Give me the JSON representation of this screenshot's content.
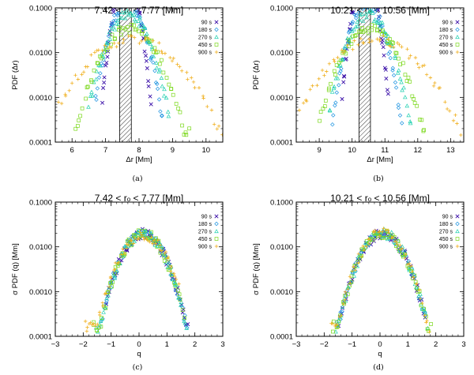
{
  "series_styles": [
    {
      "name": "90 s",
      "color": "#3a0fa8",
      "marker": "x"
    },
    {
      "name": "180 s",
      "color": "#1c93e0",
      "marker": "diamond"
    },
    {
      "name": "270 s",
      "color": "#20d0b0",
      "marker": "triangle"
    },
    {
      "name": "450 s",
      "color": "#7ad81a",
      "marker": "square"
    },
    {
      "name": "900 s",
      "color": "#f0b020",
      "marker": "plus"
    }
  ],
  "chart_data": [
    {
      "type": "scatter",
      "panel": "a",
      "caption": "(a)",
      "title_pre": "7.42 < r",
      "title_sub": "o",
      "title_post": " < 7.77 [Mm]",
      "xlabel": "Δr [Mm]",
      "ylabel": "PDF (Δr)",
      "xlim": [
        5.5,
        10.5
      ],
      "xticks": [
        6,
        7,
        8,
        9,
        10
      ],
      "ylim": [
        0.0001,
        0.1
      ],
      "yscale": "log",
      "yticks": [
        0.0001,
        0.001,
        0.01,
        0.1
      ],
      "ytick_labels": [
        "0.0001",
        "0.0010",
        "0.0100",
        "0.1000"
      ],
      "hatch": [
        7.42,
        7.77
      ],
      "series": [
        {
          "name": "90 s",
          "kind": "gauss",
          "mu": 7.62,
          "sigma": 0.2,
          "peak": 0.5,
          "xmin": 6.9,
          "xmax": 8.35
        },
        {
          "name": "180 s",
          "kind": "gauss",
          "mu": 7.65,
          "sigma": 0.3,
          "peak": 0.13,
          "xmin": 6.7,
          "xmax": 8.7
        },
        {
          "name": "270 s",
          "kind": "gauss",
          "mu": 7.68,
          "sigma": 0.38,
          "peak": 0.07,
          "xmin": 6.5,
          "xmax": 8.9
        },
        {
          "name": "450 s",
          "kind": "gauss",
          "mu": 7.72,
          "sigma": 0.5,
          "peak": 0.035,
          "xmin": 6.1,
          "xmax": 9.5
        },
        {
          "name": "900 s",
          "kind": "gauss",
          "mu": 7.8,
          "sigma": 0.85,
          "peak": 0.02,
          "xmin": 5.6,
          "xmax": 10.45
        }
      ]
    },
    {
      "type": "scatter",
      "panel": "b",
      "caption": "(b)",
      "title_pre": "10.21 < r",
      "title_sub": "o",
      "title_post": " < 10.56 [Mm]",
      "xlabel": "Δr [Mm]",
      "ylabel": "PDF (Δr)",
      "xlim": [
        8.3,
        13.4
      ],
      "xticks": [
        9,
        10,
        11,
        12,
        13
      ],
      "ylim": [
        0.0001,
        0.1
      ],
      "yscale": "log",
      "yticks": [
        0.0001,
        0.001,
        0.01,
        0.1
      ],
      "ytick_labels": [
        "0.0001",
        "0.0010",
        "0.0100",
        "0.1000"
      ],
      "hatch": [
        10.21,
        10.56
      ],
      "series": [
        {
          "name": "90 s",
          "kind": "gauss",
          "mu": 10.4,
          "sigma": 0.2,
          "peak": 0.5,
          "xmin": 9.7,
          "xmax": 11.1
        },
        {
          "name": "180 s",
          "kind": "gauss",
          "mu": 10.45,
          "sigma": 0.3,
          "peak": 0.13,
          "xmin": 9.4,
          "xmax": 11.5
        },
        {
          "name": "270 s",
          "kind": "gauss",
          "mu": 10.5,
          "sigma": 0.38,
          "peak": 0.07,
          "xmin": 9.3,
          "xmax": 11.8
        },
        {
          "name": "450 s",
          "kind": "gauss",
          "mu": 10.55,
          "sigma": 0.5,
          "peak": 0.035,
          "xmin": 9.0,
          "xmax": 12.2
        },
        {
          "name": "900 s",
          "kind": "gauss",
          "mu": 10.7,
          "sigma": 0.85,
          "peak": 0.02,
          "xmin": 8.4,
          "xmax": 13.3
        }
      ]
    },
    {
      "type": "scatter",
      "panel": "c",
      "caption": "(c)",
      "title_pre": "7.42 < r",
      "title_sub": "o",
      "title_post": " < 7.77 [Mm]",
      "xlabel": "q",
      "ylabel": "σ PDF (q) [Mm]",
      "xlim": [
        -3,
        3
      ],
      "xticks": [
        -3,
        -2,
        -1,
        0,
        1,
        2,
        3
      ],
      "ylim": [
        0.0001,
        0.1
      ],
      "yscale": "log",
      "yticks": [
        0.0001,
        0.001,
        0.01,
        0.1
      ],
      "ytick_labels": [
        "0.0001",
        "0.0010",
        "0.0100",
        "0.1000"
      ],
      "series": [
        {
          "name": "90 s",
          "kind": "gauss",
          "mu": 0.15,
          "sigma": 0.5,
          "peak": 0.02,
          "xmin": -1.2,
          "xmax": 1.75
        },
        {
          "name": "180 s",
          "kind": "gauss",
          "mu": 0.15,
          "sigma": 0.5,
          "peak": 0.02,
          "xmin": -1.4,
          "xmax": 1.75
        },
        {
          "name": "270 s",
          "kind": "gauss",
          "mu": 0.15,
          "sigma": 0.5,
          "peak": 0.02,
          "xmin": -1.55,
          "xmax": 1.7
        },
        {
          "name": "450 s",
          "kind": "gauss",
          "mu": 0.15,
          "sigma": 0.5,
          "peak": 0.02,
          "xmin": -1.65,
          "xmax": 1.6
        },
        {
          "name": "900 s",
          "kind": "gauss",
          "mu": 0.15,
          "sigma": 0.55,
          "peak": 0.018,
          "xmin": -1.95,
          "xmax": 1.4
        }
      ]
    },
    {
      "type": "scatter",
      "panel": "d",
      "caption": "(d)",
      "title_pre": "10.21 < r",
      "title_sub": "o",
      "title_post": " < 10.56 [Mm]",
      "xlabel": "q",
      "ylabel": "σ PDF (q) [Mm]",
      "xlim": [
        -3,
        3
      ],
      "xticks": [
        -3,
        -2,
        -1,
        0,
        1,
        2,
        3
      ],
      "ylim": [
        0.0001,
        0.1
      ],
      "yscale": "log",
      "yticks": [
        0.0001,
        0.001,
        0.01,
        0.1
      ],
      "ytick_labels": [
        "0.0001",
        "0.0010",
        "0.0100",
        "0.1000"
      ],
      "series": [
        {
          "name": "90 s",
          "kind": "gauss",
          "mu": 0.1,
          "sigma": 0.52,
          "peak": 0.02,
          "xmin": -1.5,
          "xmax": 1.6
        },
        {
          "name": "180 s",
          "kind": "gauss",
          "mu": 0.1,
          "sigma": 0.52,
          "peak": 0.02,
          "xmin": -1.55,
          "xmax": 1.65
        },
        {
          "name": "270 s",
          "kind": "gauss",
          "mu": 0.1,
          "sigma": 0.52,
          "peak": 0.02,
          "xmin": -1.6,
          "xmax": 1.7
        },
        {
          "name": "450 s",
          "kind": "gauss",
          "mu": 0.1,
          "sigma": 0.52,
          "peak": 0.02,
          "xmin": -1.7,
          "xmax": 1.8
        },
        {
          "name": "900 s",
          "kind": "gauss",
          "mu": 0.1,
          "sigma": 0.52,
          "peak": 0.022,
          "xmin": -1.75,
          "xmax": 1.75
        }
      ]
    }
  ]
}
